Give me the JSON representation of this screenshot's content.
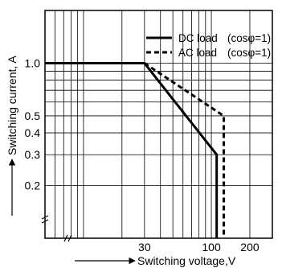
{
  "chart_data": {
    "type": "line",
    "xlabel": "Switching voltage,V",
    "ylabel": "Switching current, A",
    "x_scale": "log",
    "y_scale": "log",
    "xlim": [
      5,
      300
    ],
    "ylim": [
      0.1,
      2.0
    ],
    "x_ticks": [
      30,
      100,
      200
    ],
    "x_tick_labels": [
      "30",
      "100",
      "200"
    ],
    "y_ticks": [
      1.0,
      0.5,
      0.4,
      0.3,
      0.2
    ],
    "y_tick_labels": [
      "1.0",
      "0.5",
      "0.4",
      "0.3",
      "0.2"
    ],
    "grid": true,
    "legend_position": "top-right",
    "series": [
      {
        "name": "DC load",
        "condition": "(cosφ=1)",
        "style": "solid",
        "color": "#000000",
        "points": [
          [
            5,
            1.0
          ],
          [
            30,
            1.0
          ],
          [
            110,
            0.3
          ],
          [
            110,
            0.1
          ]
        ]
      },
      {
        "name": "AC load",
        "condition": "(cosφ=1)",
        "style": "dashed",
        "color": "#000000",
        "points": [
          [
            30,
            1.0
          ],
          [
            125,
            0.5
          ],
          [
            125,
            0.1
          ]
        ]
      }
    ]
  }
}
